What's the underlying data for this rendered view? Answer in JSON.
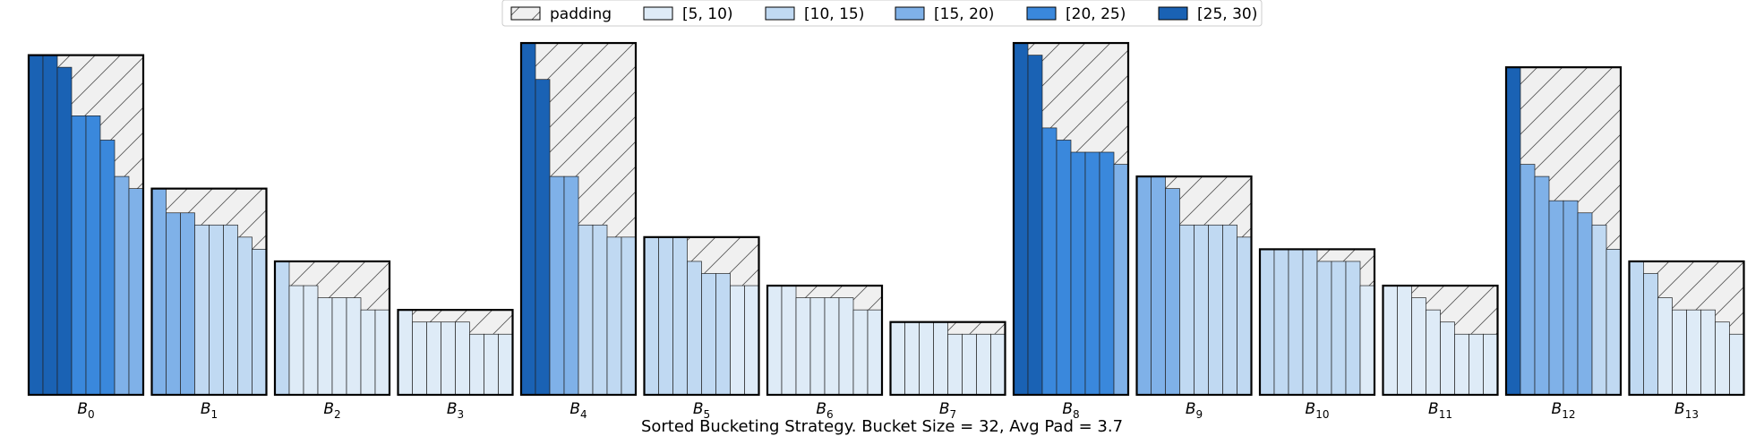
{
  "chart_data": {
    "type": "bar",
    "title": "Sorted Bucketing Strategy. Bucket Size = 32, Avg Pad = 3.7",
    "xlabel": "",
    "ylabel": "",
    "ylim": [
      0,
      29
    ],
    "grid": false,
    "legend_placement": "top-center",
    "legend": [
      {
        "label": "padding",
        "color": "#f0f0f0",
        "hatch": true
      },
      {
        "label": "[5, 10)",
        "color": "#deebf7"
      },
      {
        "label": "[10, 15)",
        "color": "#c0d9f2"
      },
      {
        "label": "[15, 20)",
        "color": "#7fb1e8"
      },
      {
        "label": "[20, 25)",
        "color": "#3a88dc"
      },
      {
        "label": "[25, 30)",
        "color": "#1a62b4"
      }
    ],
    "buckets": [
      {
        "label": "B",
        "sub": "0",
        "values": [
          28,
          28,
          27,
          23,
          23,
          21,
          18,
          17
        ]
      },
      {
        "label": "B",
        "sub": "1",
        "values": [
          17,
          15,
          15,
          14,
          14,
          14,
          13,
          12
        ]
      },
      {
        "label": "B",
        "sub": "2",
        "values": [
          11,
          9,
          9,
          8,
          8,
          8,
          7,
          7
        ]
      },
      {
        "label": "B",
        "sub": "3",
        "values": [
          7,
          6,
          6,
          6,
          6,
          5,
          5,
          5
        ]
      },
      {
        "label": "B",
        "sub": "4",
        "values": [
          29,
          26,
          18,
          18,
          14,
          14,
          13,
          13
        ]
      },
      {
        "label": "B",
        "sub": "5",
        "values": [
          13,
          13,
          13,
          11,
          10,
          10,
          9,
          9
        ]
      },
      {
        "label": "B",
        "sub": "6",
        "values": [
          9,
          9,
          8,
          8,
          8,
          8,
          7,
          7
        ]
      },
      {
        "label": "B",
        "sub": "7",
        "values": [
          6,
          6,
          6,
          6,
          5,
          5,
          5,
          5
        ]
      },
      {
        "label": "B",
        "sub": "8",
        "values": [
          29,
          28,
          22,
          21,
          20,
          20,
          20,
          19
        ]
      },
      {
        "label": "B",
        "sub": "9",
        "values": [
          18,
          18,
          17,
          14,
          14,
          14,
          14,
          13
        ]
      },
      {
        "label": "B",
        "sub": "10",
        "values": [
          12,
          12,
          12,
          12,
          11,
          11,
          11,
          9
        ]
      },
      {
        "label": "B",
        "sub": "11",
        "values": [
          9,
          9,
          8,
          7,
          6,
          5,
          5,
          5
        ]
      },
      {
        "label": "B",
        "sub": "12",
        "values": [
          27,
          19,
          18,
          16,
          16,
          15,
          14,
          12
        ]
      },
      {
        "label": "B",
        "sub": "13",
        "values": [
          11,
          10,
          8,
          7,
          7,
          7,
          6,
          5
        ]
      }
    ]
  }
}
